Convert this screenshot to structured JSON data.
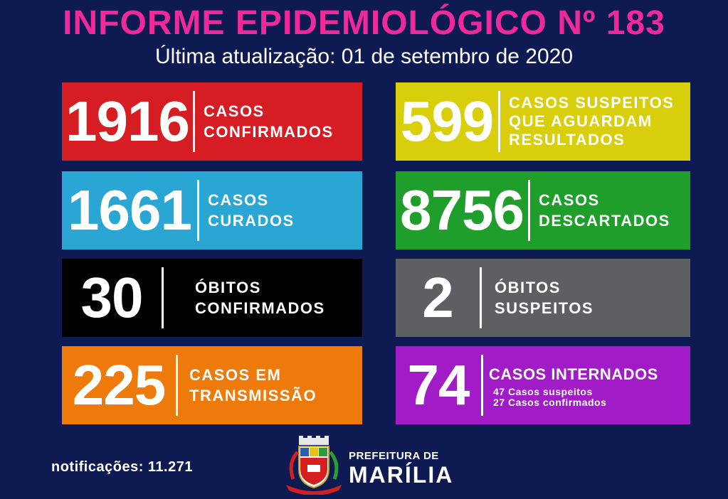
{
  "header": {
    "title": "INFORME EPIDEMIOLÓGICO Nº 183",
    "subtitle": "Última atualização: 01 de setembro de 2020"
  },
  "cards": {
    "confirmed": {
      "value": "1916",
      "line1": "CASOS",
      "line2": "CONFIRMADOS",
      "color": "#d71d24"
    },
    "suspected": {
      "value": "599",
      "line1": "CASOS SUSPEITOS",
      "line2": "QUE AGUARDAM",
      "line3": "RESULTADOS",
      "color": "#d9ce0b"
    },
    "cured": {
      "value": "1661",
      "line1": "CASOS",
      "line2": "CURADOS",
      "color": "#29a6d4"
    },
    "discarded": {
      "value": "8756",
      "line1": "CASOS",
      "line2": "DESCARTADOS",
      "color": "#1f9e2b"
    },
    "deaths_confirmed": {
      "value": "30",
      "line1": "ÓBITOS",
      "line2": "CONFIRMADOS",
      "color": "#000000"
    },
    "deaths_suspected": {
      "value": "2",
      "line1": "ÓBITOS",
      "line2": "SUSPEITOS",
      "color": "#5d5f62"
    },
    "transmission": {
      "value": "225",
      "line1": "CASOS EM",
      "line2": "TRANSMISSÃO",
      "color": "#ef7a0c"
    },
    "hospitalized": {
      "value": "74",
      "line1": "CASOS INTERNADOS",
      "detail1": "47 Casos suspeitos",
      "detail2": "27 Casos confirmados",
      "color": "#a11bc7"
    }
  },
  "footer": {
    "notifications": "notificações: 11.271",
    "prefeitura_top": "PREFEITURA DE",
    "prefeitura_main": "MARÍLIA",
    "crest_icon": "city-coat-of-arms-icon"
  }
}
